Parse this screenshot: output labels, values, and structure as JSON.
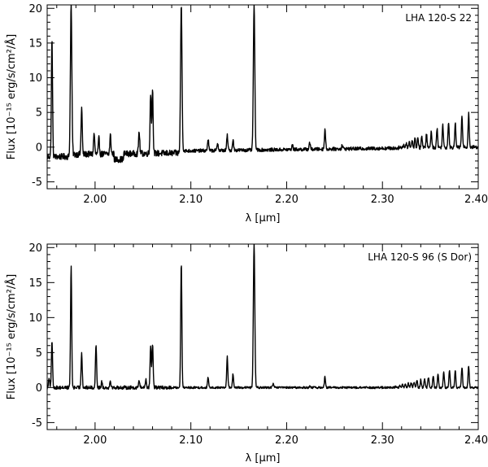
{
  "chart_data": [
    {
      "type": "line",
      "label": "LHA 120-S 22",
      "xlabel": "λ [μm]",
      "ylabel": "Flux [10⁻¹⁵ erg/s/cm²/Å]",
      "xlim": [
        1.95,
        2.4
      ],
      "ylim": [
        -6,
        20.5
      ],
      "xticks": [
        2.0,
        2.1,
        2.2,
        2.3,
        2.4
      ],
      "xtick_labels": [
        "2.00",
        "2.10",
        "2.20",
        "2.30",
        "2.40"
      ],
      "yticks": [
        -5,
        0,
        5,
        10,
        15,
        20
      ],
      "ytick_labels": [
        "-5",
        "0",
        "5",
        "10",
        "15",
        "20"
      ],
      "grid": false,
      "baseline": -0.8,
      "series": [
        {
          "peaks_um": [
            1.955,
            1.975,
            1.986,
            1.999,
            2.004,
            2.016,
            2.046,
            2.058,
            2.06,
            2.09,
            2.118,
            2.128,
            2.138,
            2.144,
            2.166,
            2.206,
            2.224,
            2.24,
            2.258,
            2.318,
            2.322,
            2.325,
            2.328,
            2.331,
            2.334,
            2.337,
            2.341,
            2.346,
            2.351,
            2.357,
            2.363,
            2.369,
            2.376,
            2.383,
            2.39
          ],
          "peaks_flux": [
            15.5,
            20.5,
            5.8,
            2.0,
            1.2,
            1.7,
            2.3,
            7.8,
            8.3,
            20.5,
            1.2,
            0.6,
            1.7,
            1.1,
            20.5,
            0.3,
            0.7,
            2.6,
            0.3,
            0.1,
            0.4,
            0.6,
            0.8,
            1.0,
            1.2,
            1.4,
            1.6,
            1.9,
            2.3,
            2.7,
            3.2,
            3.7,
            3.5,
            4.5,
            4.8
          ]
        }
      ]
    },
    {
      "type": "line",
      "label": "LHA 120-S 96 (S Dor)",
      "xlabel": "λ [μm]",
      "ylabel": "Flux [10⁻¹⁵ erg/s/cm²/Å]",
      "xlim": [
        1.95,
        2.4
      ],
      "ylim": [
        -6,
        20.5
      ],
      "xticks": [
        2.0,
        2.1,
        2.2,
        2.3,
        2.4
      ],
      "xtick_labels": [
        "2.00",
        "2.10",
        "2.20",
        "2.30",
        "2.40"
      ],
      "yticks": [
        -5,
        0,
        5,
        10,
        15,
        20
      ],
      "ytick_labels": [
        "-5",
        "0",
        "5",
        "10",
        "15",
        "20"
      ],
      "grid": false,
      "baseline": 0.0,
      "series": [
        {
          "peaks_um": [
            1.952,
            1.955,
            1.975,
            1.986,
            2.001,
            2.007,
            2.016,
            2.046,
            2.053,
            2.058,
            2.06,
            2.09,
            2.118,
            2.138,
            2.144,
            2.166,
            2.186,
            2.224,
            2.24,
            2.314,
            2.318,
            2.321,
            2.324,
            2.327,
            2.33,
            2.333,
            2.336,
            2.34,
            2.344,
            2.348,
            2.353,
            2.358,
            2.364,
            2.37,
            2.376,
            2.383,
            2.39
          ],
          "peaks_flux": [
            1.5,
            6.5,
            17.3,
            5.0,
            6.2,
            0.8,
            1.0,
            1.0,
            1.2,
            5.9,
            6.3,
            17.9,
            1.4,
            4.4,
            1.9,
            20.5,
            0.6,
            0.2,
            1.6,
            0.2,
            0.3,
            0.4,
            0.5,
            0.6,
            0.7,
            0.8,
            1.0,
            1.1,
            1.3,
            1.5,
            1.7,
            2.0,
            2.2,
            2.4,
            2.5,
            2.9,
            3.1
          ]
        }
      ]
    }
  ]
}
